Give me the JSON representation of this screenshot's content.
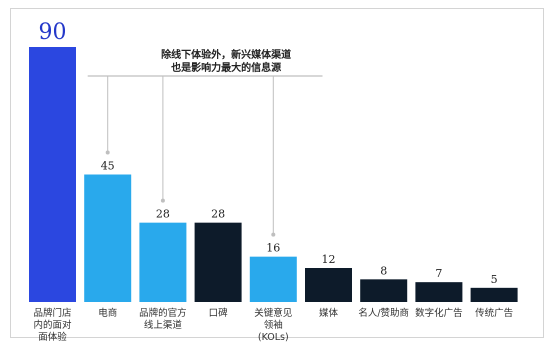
{
  "chart_data": {
    "type": "bar",
    "categories": [
      [
        "品牌门店",
        "内的面对",
        "面体验"
      ],
      [
        "电商"
      ],
      [
        "品牌的官方",
        "线上渠道"
      ],
      [
        "口碑"
      ],
      [
        "关键意见",
        "领袖",
        "(KOLs)"
      ],
      [
        "媒体"
      ],
      [
        "名人/赞助商"
      ],
      [
        "数字化广告"
      ],
      [
        "传统广告"
      ]
    ],
    "values": [
      90,
      45,
      28,
      28,
      16,
      12,
      8,
      7,
      5
    ],
    "value_labels": [
      "90",
      "45",
      "28",
      "28",
      "16",
      "12",
      "8",
      "7",
      "5"
    ],
    "bar_colors": [
      "#2b47e0",
      "#29a9ec",
      "#29a9ec",
      "#0d1b2a",
      "#29a9ec",
      "#0d1b2a",
      "#0d1b2a",
      "#0d1b2a",
      "#0d1b2a"
    ],
    "ylim": [
      0,
      90
    ],
    "annotation": {
      "lines": [
        "除线下体验外，新兴媒体渠道",
        "也是影响力最大的信息源"
      ],
      "targets": [
        1,
        2,
        4
      ]
    }
  }
}
